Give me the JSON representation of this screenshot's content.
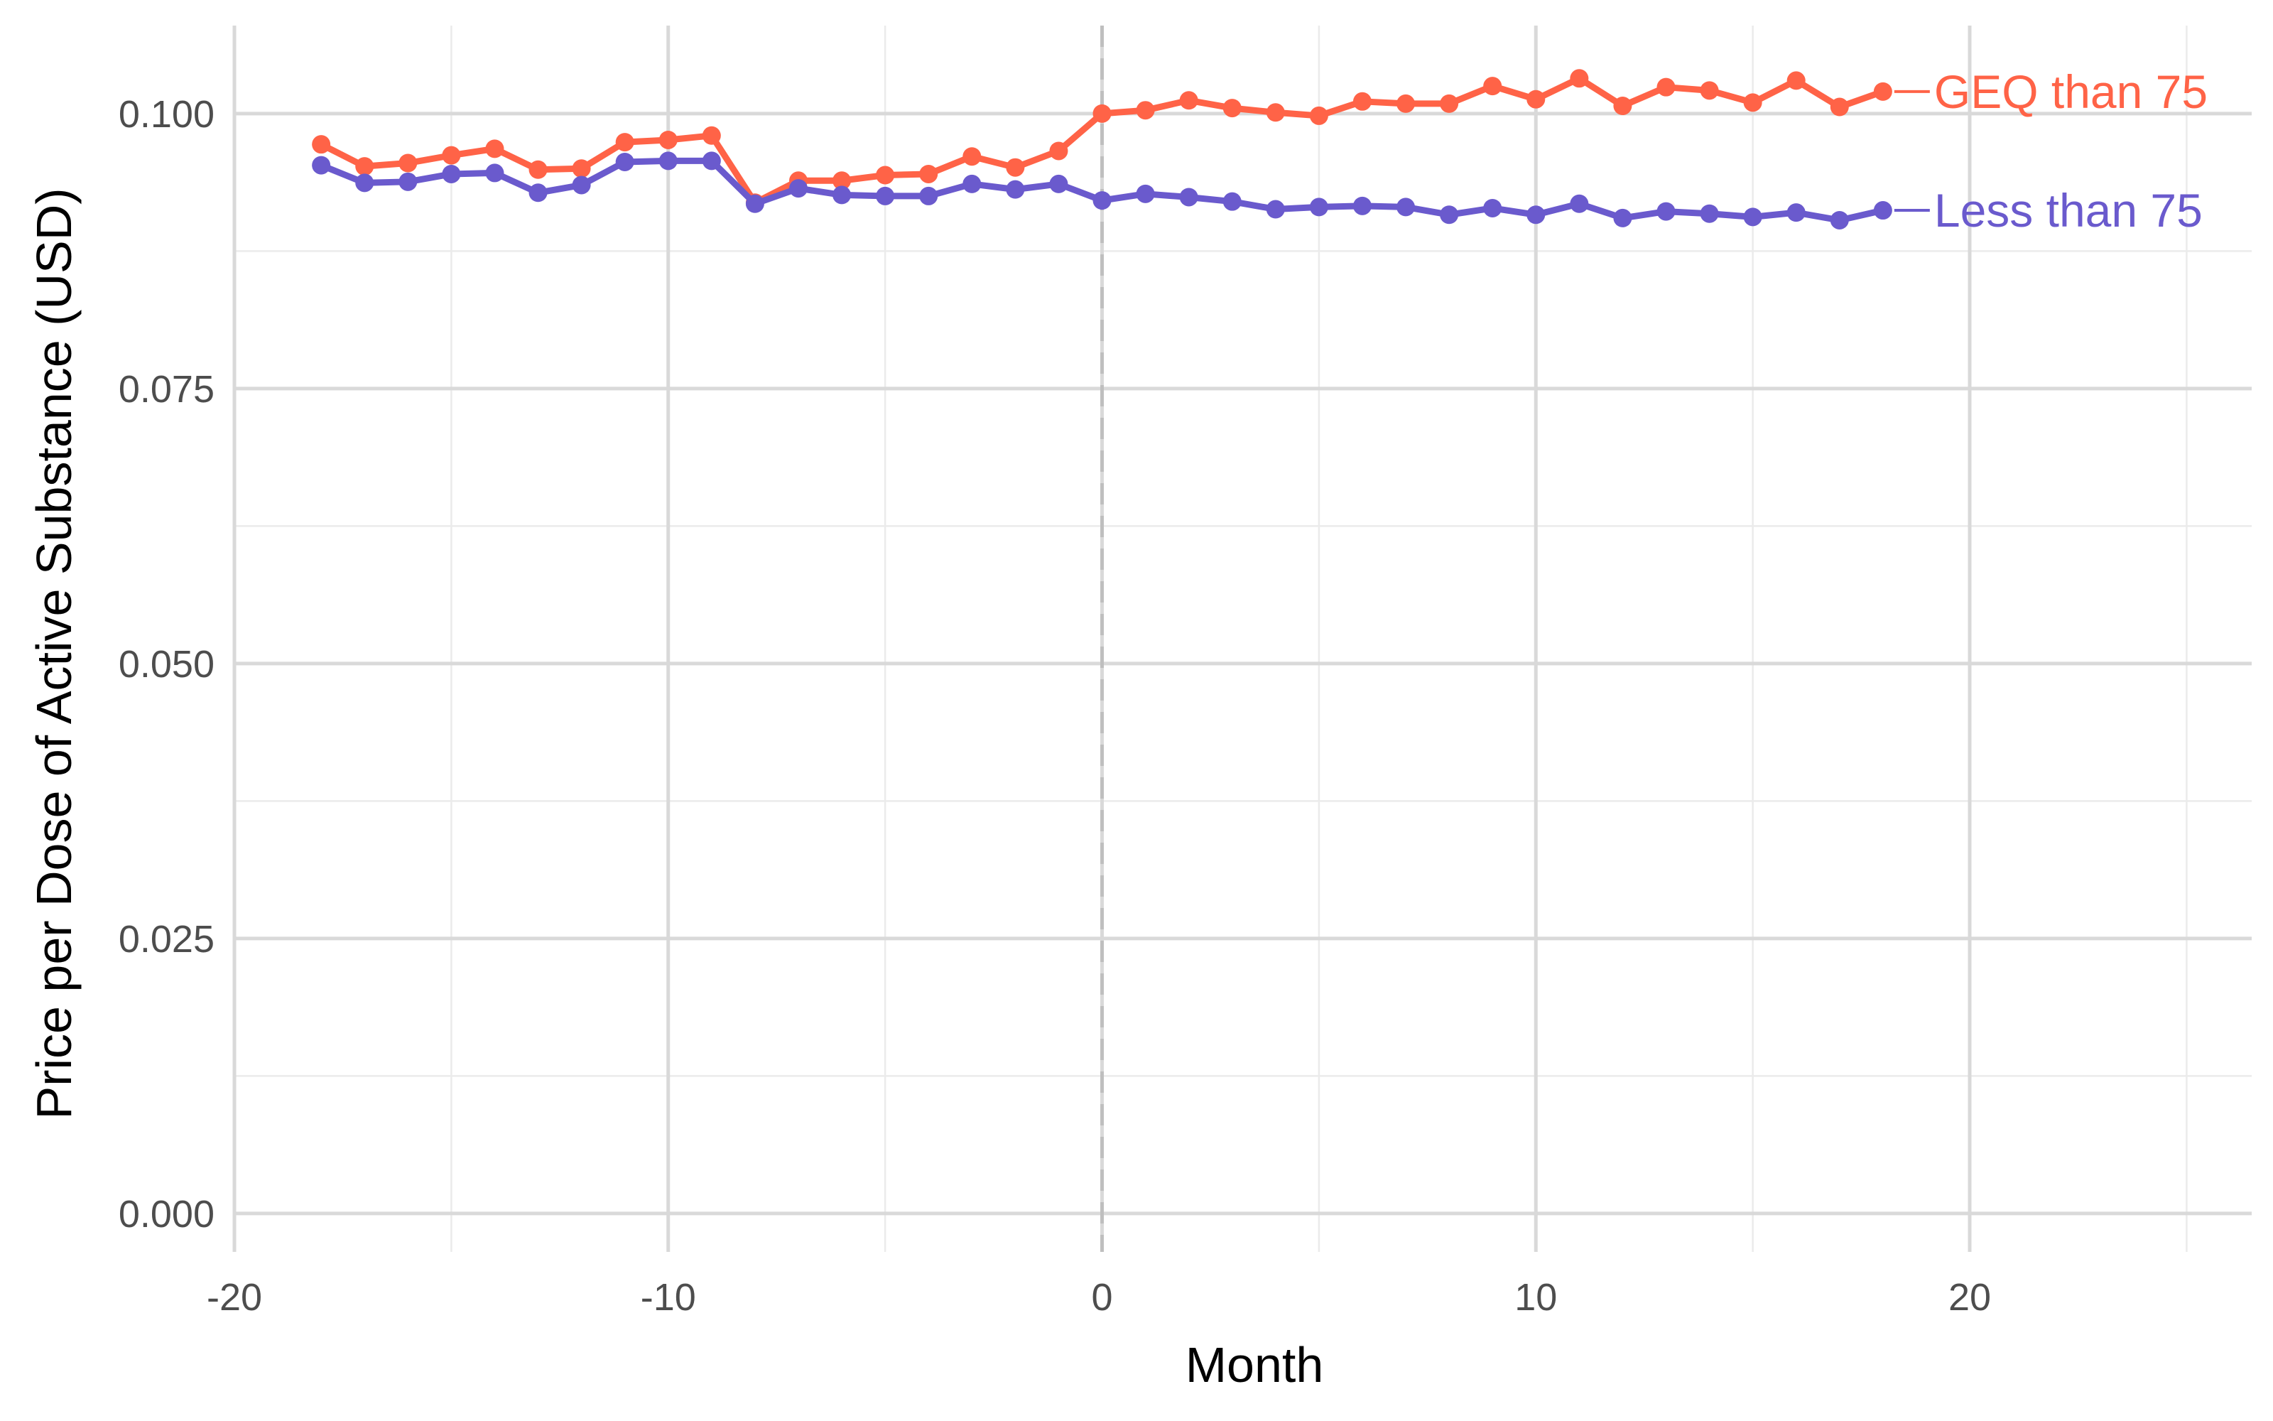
{
  "chart_data": {
    "type": "line",
    "xlabel": "Month",
    "ylabel": "Price per Dose of Active Substance (USD)",
    "xlim": [
      -20,
      26.5
    ],
    "ylim": [
      -0.0035,
      0.108
    ],
    "x_ticks": [
      -20,
      -10,
      0,
      10,
      20
    ],
    "x_tick_labels": [
      "-20",
      "-10",
      "0",
      "10",
      "20"
    ],
    "y_ticks": [
      0,
      0.025,
      0.05,
      0.075,
      0.1
    ],
    "y_tick_labels": [
      "0.000",
      "0.025",
      "0.050",
      "0.075",
      "0.100"
    ],
    "x_minor_ticks": [
      -15,
      -5,
      5,
      15,
      25
    ],
    "y_minor_ticks": [
      0.0125,
      0.0375,
      0.0625,
      0.0875
    ],
    "grid": true,
    "vline": {
      "x": 0,
      "style": "dashed",
      "color": "#bfbfbf"
    },
    "legend": "direct-labels-right",
    "x": [
      -18,
      -17,
      -16,
      -15,
      -14,
      -13,
      -12,
      -11,
      -10,
      -9,
      -8,
      -7,
      -6,
      -5,
      -4,
      -3,
      -2,
      -1,
      0,
      1,
      2,
      3,
      4,
      5,
      6,
      7,
      8,
      9,
      10,
      11,
      12,
      13,
      14,
      15,
      16,
      17,
      18
    ],
    "series": [
      {
        "name": "GEQ than 75",
        "color": "#ff6347",
        "values": [
          0.0972,
          0.0952,
          0.0955,
          0.0962,
          0.0968,
          0.0949,
          0.095,
          0.0974,
          0.0976,
          0.098,
          0.0919,
          0.0939,
          0.0939,
          0.0944,
          0.0945,
          0.0961,
          0.0951,
          0.0966,
          0.1,
          0.1003,
          0.1012,
          0.1005,
          0.1001,
          0.0998,
          0.1011,
          0.1009,
          0.1009,
          0.1025,
          0.1013,
          0.1032,
          0.1007,
          0.1024,
          0.1021,
          0.101,
          0.103,
          0.1006,
          0.102
        ]
      },
      {
        "name": "Less than 75",
        "color": "#6a5acd",
        "values": [
          0.0953,
          0.0937,
          0.0938,
          0.0945,
          0.0946,
          0.0928,
          0.0935,
          0.0956,
          0.0957,
          0.0957,
          0.0918,
          0.0932,
          0.0926,
          0.0925,
          0.0925,
          0.0936,
          0.0931,
          0.0936,
          0.0921,
          0.0927,
          0.0924,
          0.092,
          0.0913,
          0.0915,
          0.0916,
          0.0915,
          0.0908,
          0.0914,
          0.0908,
          0.0918,
          0.0905,
          0.0911,
          0.0909,
          0.0906,
          0.091,
          0.0903,
          0.0912
        ]
      }
    ]
  }
}
